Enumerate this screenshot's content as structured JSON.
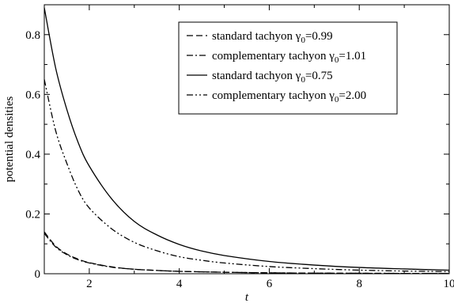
{
  "chart_data": {
    "type": "line",
    "title": "",
    "xlabel": "t",
    "ylabel": "potential densities",
    "xlim": [
      1,
      10
    ],
    "ylim": [
      0,
      0.9
    ],
    "x_ticks": [
      2,
      4,
      6,
      8,
      10
    ],
    "y_ticks": [
      0,
      0.2,
      0.4,
      0.6,
      0.8
    ],
    "x_tick_labels": [
      "2",
      "4",
      "6",
      "8",
      "10"
    ],
    "y_tick_labels": [
      "0",
      "0.2",
      "0.4",
      "0.6",
      "0.8"
    ],
    "grid": false,
    "legend_position": "top-right",
    "series": [
      {
        "name": "standard tachyon γ₀=0.99",
        "legend_prefix": "standard tachyon γ",
        "legend_sub": "0",
        "legend_suffix": "=0.99",
        "style": "dashed",
        "color": "#000000",
        "x": [
          1.0,
          1.25,
          1.5,
          1.75,
          2.0,
          2.5,
          3.0,
          3.5,
          4.0,
          5.0,
          6.0,
          7.0,
          8.0,
          9.0,
          10.0
        ],
        "y": [
          0.14,
          0.093,
          0.066,
          0.049,
          0.037,
          0.023,
          0.015,
          0.011,
          0.008,
          0.005,
          0.003,
          0.002,
          0.0015,
          0.001,
          0.0008
        ]
      },
      {
        "name": "complementary tachyon γ₀=1.01",
        "legend_prefix": "complementary tachyon γ",
        "legend_sub": "0",
        "legend_suffix": "=1.01",
        "style": "dashdot",
        "color": "#000000",
        "x": [
          1.0,
          1.25,
          1.5,
          1.75,
          2.0,
          2.5,
          3.0,
          3.5,
          4.0,
          5.0,
          6.0,
          7.0,
          8.0,
          9.0,
          10.0
        ],
        "y": [
          0.135,
          0.09,
          0.064,
          0.047,
          0.036,
          0.022,
          0.015,
          0.011,
          0.008,
          0.005,
          0.003,
          0.002,
          0.0015,
          0.001,
          0.0008
        ]
      },
      {
        "name": "standard tachyon γ₀=0.75",
        "legend_prefix": "standard tachyon γ",
        "legend_sub": "0",
        "legend_suffix": "=0.75",
        "style": "solid",
        "color": "#000000",
        "x": [
          1.0,
          1.25,
          1.5,
          1.75,
          2.0,
          2.5,
          3.0,
          3.5,
          4.0,
          4.5,
          5.0,
          6.0,
          7.0,
          8.0,
          9.0,
          10.0
        ],
        "y": [
          0.89,
          0.69,
          0.55,
          0.44,
          0.36,
          0.25,
          0.175,
          0.13,
          0.098,
          0.076,
          0.061,
          0.041,
          0.029,
          0.021,
          0.016,
          0.012
        ]
      },
      {
        "name": "complementary tachyon γ₀=2.00",
        "legend_prefix": "complementary tachyon γ",
        "legend_sub": "0",
        "legend_suffix": "=2.00",
        "style": "dashdotdot",
        "color": "#000000",
        "x": [
          1.0,
          1.25,
          1.5,
          1.75,
          2.0,
          2.5,
          3.0,
          3.5,
          4.0,
          4.5,
          5.0,
          6.0,
          7.0,
          8.0,
          9.0,
          10.0
        ],
        "y": [
          0.65,
          0.48,
          0.37,
          0.28,
          0.22,
          0.15,
          0.105,
          0.077,
          0.057,
          0.045,
          0.036,
          0.024,
          0.017,
          0.012,
          0.009,
          0.007
        ]
      }
    ]
  }
}
